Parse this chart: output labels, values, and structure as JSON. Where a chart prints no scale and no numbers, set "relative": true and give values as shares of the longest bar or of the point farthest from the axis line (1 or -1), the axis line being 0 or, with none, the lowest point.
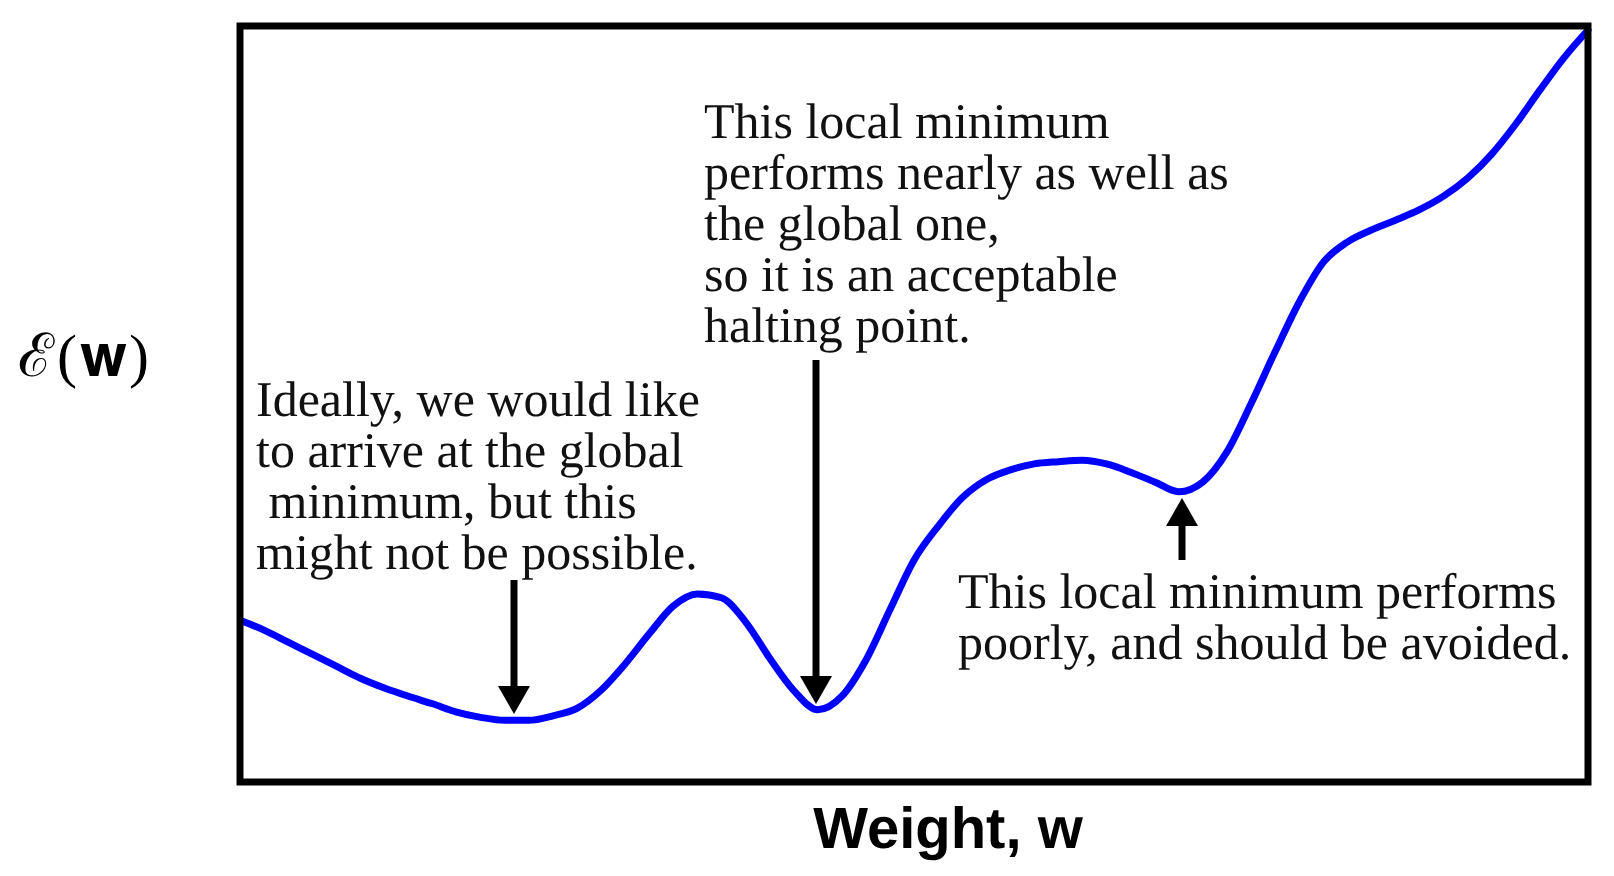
{
  "chart_data": {
    "type": "line",
    "relative": true,
    "xlabel": "Weight, w",
    "ylabel": "ℰ(𝐰)",
    "color": "#0000ff",
    "categories": [
      null,
      null,
      null,
      null,
      null,
      null,
      null,
      null,
      null,
      null,
      null,
      null,
      null,
      null,
      null,
      null,
      null,
      null,
      null,
      null,
      null,
      null,
      null,
      null,
      null,
      null,
      null,
      null,
      null,
      null,
      null,
      null,
      null,
      null,
      null,
      null,
      null,
      null,
      null,
      null,
      null,
      null,
      null,
      null,
      null,
      null,
      null,
      null,
      null,
      null,
      null,
      null,
      null,
      null,
      null,
      null,
      null
    ],
    "values": [
      0.215,
      0.202,
      0.186,
      0.17,
      0.154,
      0.138,
      0.125,
      0.114,
      0.104,
      0.093,
      0.086,
      0.082,
      0.082,
      0.088,
      0.098,
      0.122,
      0.157,
      0.197,
      0.234,
      0.25,
      0.245,
      0.213,
      0.165,
      0.122,
      0.096,
      0.114,
      0.162,
      0.229,
      0.295,
      0.34,
      0.378,
      0.402,
      0.415,
      0.423,
      0.426,
      0.428,
      0.423,
      0.412,
      0.399,
      0.386,
      0.399,
      0.439,
      0.503,
      0.572,
      0.638,
      0.691,
      0.718,
      0.734,
      0.747,
      0.761,
      0.779,
      0.803,
      0.835,
      0.875,
      0.92,
      0.963,
      1
    ],
    "annotations": [
      "Ideally, we would like\nto arrive at the global\n minimum, but this\nmight not be possible.",
      "This local minimum\nperforms nearly as well as\nthe global one,\nso it is an acceptable\nhalting point.",
      "This local minimum performs\npoorly, and should be avoided."
    ]
  }
}
